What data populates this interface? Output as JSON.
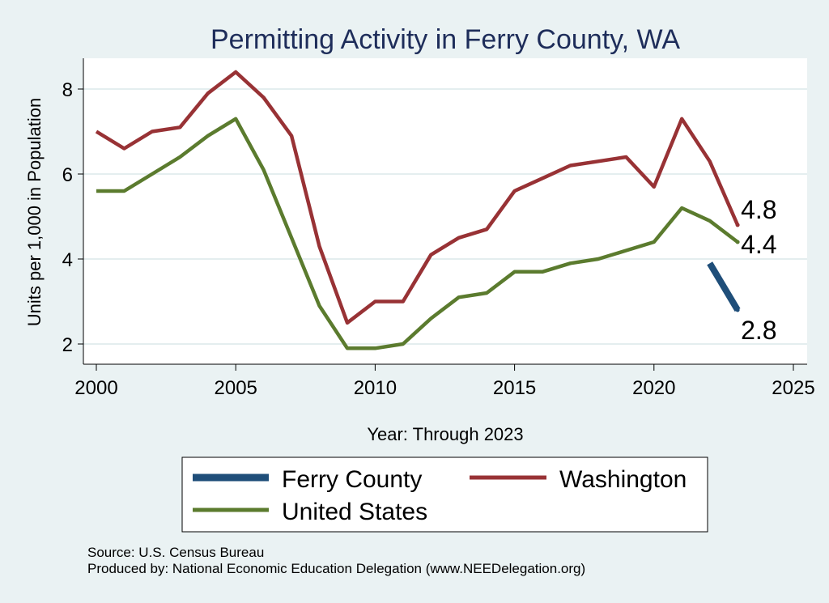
{
  "chart_data": {
    "type": "line",
    "title": "Permitting Activity in Ferry County, WA",
    "xlabel": "Year: Through 2023",
    "ylabel": "Units per 1,000 in Population",
    "xlim": [
      2000,
      2025
    ],
    "ylim": [
      1.8,
      8.5
    ],
    "xticks": [
      "2000",
      "2005",
      "2010",
      "2015",
      "2020",
      "2025"
    ],
    "yticks": [
      "2",
      "4",
      "6",
      "8"
    ],
    "grid": "horizontal",
    "legend_position": "bottom",
    "series": [
      {
        "name": "Ferry County",
        "color": "#1f4e79",
        "x": [
          2022,
          2023
        ],
        "values": [
          3.9,
          2.8
        ],
        "end_label": "2.8"
      },
      {
        "name": "Washington",
        "color": "#983235",
        "x": [
          2000,
          2001,
          2002,
          2003,
          2004,
          2005,
          2006,
          2007,
          2008,
          2009,
          2010,
          2011,
          2012,
          2013,
          2014,
          2015,
          2016,
          2017,
          2018,
          2019,
          2020,
          2021,
          2022,
          2023
        ],
        "values": [
          7.0,
          6.6,
          7.0,
          7.1,
          7.9,
          8.4,
          7.8,
          6.9,
          4.3,
          2.5,
          3.0,
          3.0,
          4.1,
          4.5,
          4.7,
          5.6,
          5.9,
          6.2,
          6.3,
          6.4,
          5.7,
          7.3,
          6.3,
          4.8
        ],
        "end_label": "4.8"
      },
      {
        "name": "United States",
        "color": "#5b7b2e",
        "x": [
          2000,
          2001,
          2002,
          2003,
          2004,
          2005,
          2006,
          2007,
          2008,
          2009,
          2010,
          2011,
          2012,
          2013,
          2014,
          2015,
          2016,
          2017,
          2018,
          2019,
          2020,
          2021,
          2022,
          2023
        ],
        "values": [
          5.6,
          5.6,
          6.0,
          6.4,
          6.9,
          7.3,
          6.1,
          4.5,
          2.9,
          1.9,
          1.9,
          2.0,
          2.6,
          3.1,
          3.2,
          3.7,
          3.7,
          3.9,
          4.0,
          4.2,
          4.4,
          5.2,
          4.9,
          4.4
        ],
        "end_label": "4.4"
      }
    ],
    "legend": [
      "Ferry County",
      "Washington",
      "United States"
    ]
  },
  "footer": {
    "source": "Source: U.S. Census Bureau",
    "produced_by": "Produced by: National Economic Education Delegation (www.NEEDelegation.org)"
  },
  "colors": {
    "background": "#eaf2f3",
    "plot_background": "#ffffff",
    "grid": "#e4eeef",
    "title": "#1e2d5a"
  }
}
